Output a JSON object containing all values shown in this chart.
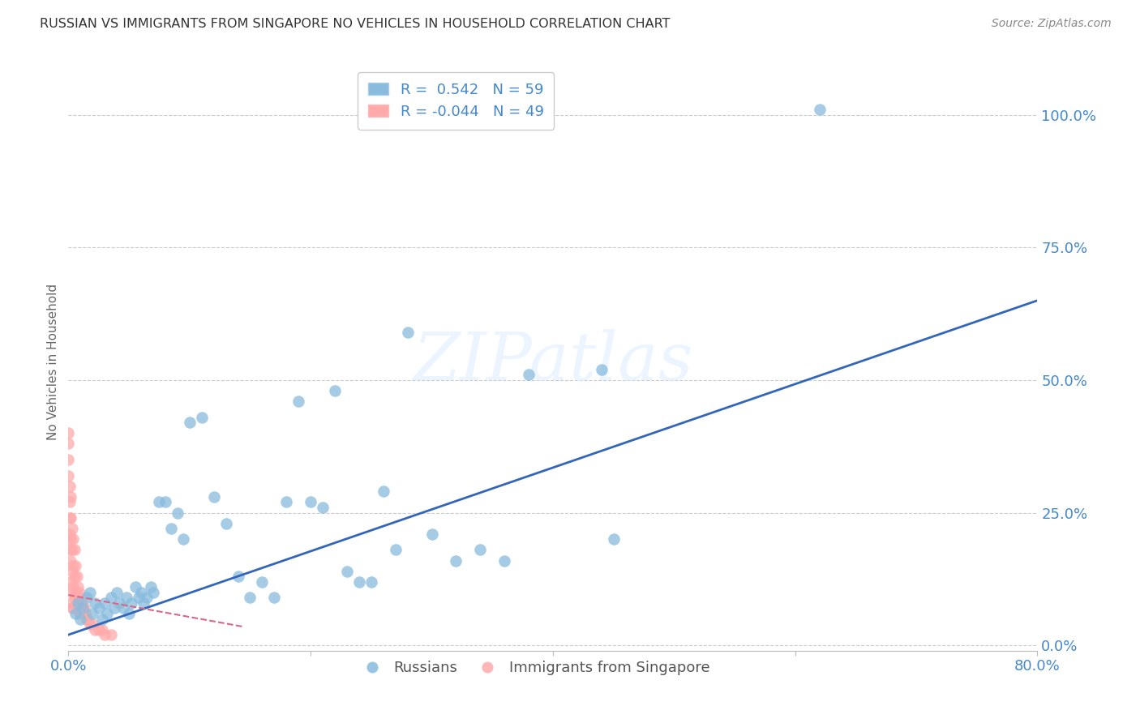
{
  "title": "RUSSIAN VS IMMIGRANTS FROM SINGAPORE NO VEHICLES IN HOUSEHOLD CORRELATION CHART",
  "source": "Source: ZipAtlas.com",
  "ylabel": "No Vehicles in Household",
  "xlim": [
    0.0,
    0.8
  ],
  "ylim": [
    -0.01,
    1.08
  ],
  "yticks": [
    0.0,
    0.25,
    0.5,
    0.75,
    1.0
  ],
  "ytick_labels": [
    "0.0%",
    "25.0%",
    "50.0%",
    "75.0%",
    "100.0%"
  ],
  "xticks": [
    0.0,
    0.2,
    0.4,
    0.6,
    0.8
  ],
  "xtick_labels": [
    "0.0%",
    "",
    "",
    "",
    "80.0%"
  ],
  "blue_R": 0.542,
  "blue_N": 59,
  "pink_R": -0.044,
  "pink_N": 49,
  "blue_color": "#88BBDD",
  "pink_color": "#FFAAAA",
  "line_blue": "#3366BB",
  "line_pink": "#DD6688",
  "watermark": "ZIPatlas",
  "blue_points_x": [
    0.006,
    0.008,
    0.01,
    0.012,
    0.015,
    0.018,
    0.02,
    0.022,
    0.025,
    0.028,
    0.03,
    0.032,
    0.035,
    0.038,
    0.04,
    0.042,
    0.045,
    0.048,
    0.05,
    0.052,
    0.055,
    0.058,
    0.06,
    0.062,
    0.065,
    0.068,
    0.07,
    0.075,
    0.08,
    0.085,
    0.09,
    0.095,
    0.1,
    0.11,
    0.12,
    0.13,
    0.14,
    0.15,
    0.16,
    0.17,
    0.18,
    0.19,
    0.2,
    0.21,
    0.22,
    0.23,
    0.24,
    0.25,
    0.26,
    0.27,
    0.28,
    0.3,
    0.32,
    0.34,
    0.36,
    0.38,
    0.44,
    0.45,
    0.62
  ],
  "blue_points_y": [
    0.06,
    0.08,
    0.05,
    0.07,
    0.09,
    0.1,
    0.06,
    0.08,
    0.07,
    0.05,
    0.08,
    0.06,
    0.09,
    0.07,
    0.1,
    0.08,
    0.07,
    0.09,
    0.06,
    0.08,
    0.11,
    0.09,
    0.1,
    0.08,
    0.09,
    0.11,
    0.1,
    0.27,
    0.27,
    0.22,
    0.25,
    0.2,
    0.42,
    0.43,
    0.28,
    0.23,
    0.13,
    0.09,
    0.12,
    0.09,
    0.27,
    0.46,
    0.27,
    0.26,
    0.48,
    0.14,
    0.12,
    0.12,
    0.29,
    0.18,
    0.59,
    0.21,
    0.16,
    0.18,
    0.16,
    0.51,
    0.52,
    0.2,
    1.01
  ],
  "pink_points_x": [
    0.0,
    0.0,
    0.0,
    0.0,
    0.001,
    0.001,
    0.001,
    0.001,
    0.001,
    0.002,
    0.002,
    0.002,
    0.002,
    0.002,
    0.002,
    0.003,
    0.003,
    0.003,
    0.003,
    0.003,
    0.004,
    0.004,
    0.004,
    0.004,
    0.005,
    0.005,
    0.005,
    0.006,
    0.006,
    0.007,
    0.007,
    0.008,
    0.008,
    0.009,
    0.009,
    0.01,
    0.011,
    0.012,
    0.013,
    0.014,
    0.015,
    0.016,
    0.018,
    0.02,
    0.022,
    0.025,
    0.028,
    0.03,
    0.035
  ],
  "pink_points_y": [
    0.4,
    0.38,
    0.35,
    0.32,
    0.3,
    0.27,
    0.24,
    0.21,
    0.18,
    0.28,
    0.24,
    0.2,
    0.16,
    0.12,
    0.08,
    0.22,
    0.18,
    0.14,
    0.1,
    0.07,
    0.2,
    0.15,
    0.11,
    0.07,
    0.18,
    0.13,
    0.09,
    0.15,
    0.1,
    0.13,
    0.08,
    0.11,
    0.07,
    0.1,
    0.06,
    0.09,
    0.08,
    0.07,
    0.07,
    0.06,
    0.05,
    0.05,
    0.04,
    0.04,
    0.03,
    0.03,
    0.03,
    0.02,
    0.02
  ],
  "blue_line_x": [
    0.0,
    0.8
  ],
  "blue_line_y": [
    0.02,
    0.65
  ],
  "pink_line_x": [
    0.0,
    0.145
  ],
  "pink_line_y": [
    0.095,
    0.035
  ],
  "background_color": "#FFFFFF",
  "grid_color": "#CCCCCC",
  "title_color": "#333333",
  "axis_color": "#4488CC",
  "legend_text_color": "#4488CC"
}
